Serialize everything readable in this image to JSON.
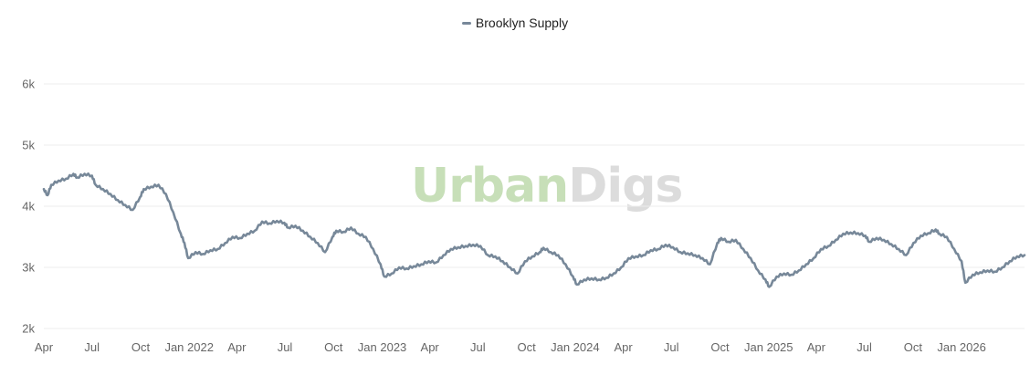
{
  "legend": {
    "label": "Brooklyn Supply"
  },
  "watermark": {
    "part1": "Urban",
    "part2": "Digs"
  },
  "colors": {
    "series": "#778899",
    "grid": "#ececec",
    "axis_text": "#666666",
    "watermark_part1": "#c7dfb8",
    "watermark_part2": "#dcdcdc"
  },
  "chart_data": {
    "type": "line",
    "title": "",
    "xlabel": "",
    "ylabel": "",
    "ylim": [
      2000,
      6000
    ],
    "y_ticks": [
      2000,
      3000,
      4000,
      5000,
      6000
    ],
    "y_tick_labels": [
      "2k",
      "3k",
      "4k",
      "5k",
      "6k"
    ],
    "xlim": [
      "2021-04-01",
      "2026-04-30"
    ],
    "x_ticks": [
      {
        "date": "2021-04-01",
        "label": "Apr"
      },
      {
        "date": "2021-07-01",
        "label": "Jul"
      },
      {
        "date": "2021-10-01",
        "label": "Oct"
      },
      {
        "date": "2022-01-01",
        "label": "Jan 2022"
      },
      {
        "date": "2022-04-01",
        "label": "Apr"
      },
      {
        "date": "2022-07-01",
        "label": "Jul"
      },
      {
        "date": "2022-10-01",
        "label": "Oct"
      },
      {
        "date": "2023-01-01",
        "label": "Jan 2023"
      },
      {
        "date": "2023-04-01",
        "label": "Apr"
      },
      {
        "date": "2023-07-01",
        "label": "Jul"
      },
      {
        "date": "2023-10-01",
        "label": "Oct"
      },
      {
        "date": "2024-01-01",
        "label": "Jan 2024"
      },
      {
        "date": "2024-04-01",
        "label": "Apr"
      },
      {
        "date": "2024-07-01",
        "label": "Jul"
      },
      {
        "date": "2024-10-01",
        "label": "Oct"
      },
      {
        "date": "2025-01-01",
        "label": "Jan 2025"
      },
      {
        "date": "2025-04-01",
        "label": "Apr"
      },
      {
        "date": "2025-07-01",
        "label": "Jul"
      },
      {
        "date": "2025-10-01",
        "label": "Oct"
      },
      {
        "date": "2026-01-01",
        "label": "Jan 2026"
      }
    ],
    "grid": true,
    "legend_position": "top-center",
    "series": [
      {
        "name": "Brooklyn Supply",
        "points": [
          [
            "2021-04-01",
            4280
          ],
          [
            "2021-04-08",
            4180
          ],
          [
            "2021-04-15",
            4350
          ],
          [
            "2021-04-29",
            4420
          ],
          [
            "2021-05-13",
            4450
          ],
          [
            "2021-05-27",
            4530
          ],
          [
            "2021-06-03",
            4470
          ],
          [
            "2021-06-17",
            4530
          ],
          [
            "2021-07-01",
            4500
          ],
          [
            "2021-07-08",
            4350
          ],
          [
            "2021-07-22",
            4280
          ],
          [
            "2021-08-05",
            4200
          ],
          [
            "2021-08-19",
            4100
          ],
          [
            "2021-09-02",
            4020
          ],
          [
            "2021-09-16",
            3940
          ],
          [
            "2021-09-30",
            4150
          ],
          [
            "2021-10-07",
            4280
          ],
          [
            "2021-10-21",
            4320
          ],
          [
            "2021-11-04",
            4350
          ],
          [
            "2021-11-18",
            4200
          ],
          [
            "2021-12-02",
            3900
          ],
          [
            "2021-12-16",
            3550
          ],
          [
            "2021-12-23",
            3400
          ],
          [
            "2021-12-30",
            3150
          ],
          [
            "2022-01-13",
            3250
          ],
          [
            "2022-01-27",
            3220
          ],
          [
            "2022-02-10",
            3280
          ],
          [
            "2022-02-24",
            3300
          ],
          [
            "2022-03-10",
            3400
          ],
          [
            "2022-03-24",
            3500
          ],
          [
            "2022-04-07",
            3480
          ],
          [
            "2022-04-21",
            3550
          ],
          [
            "2022-05-05",
            3600
          ],
          [
            "2022-05-19",
            3750
          ],
          [
            "2022-06-02",
            3720
          ],
          [
            "2022-06-16",
            3760
          ],
          [
            "2022-06-30",
            3730
          ],
          [
            "2022-07-07",
            3650
          ],
          [
            "2022-07-21",
            3680
          ],
          [
            "2022-08-04",
            3600
          ],
          [
            "2022-08-18",
            3500
          ],
          [
            "2022-09-01",
            3400
          ],
          [
            "2022-09-15",
            3250
          ],
          [
            "2022-09-29",
            3500
          ],
          [
            "2022-10-06",
            3600
          ],
          [
            "2022-10-20",
            3580
          ],
          [
            "2022-11-03",
            3650
          ],
          [
            "2022-11-17",
            3550
          ],
          [
            "2022-12-01",
            3500
          ],
          [
            "2022-12-15",
            3300
          ],
          [
            "2022-12-29",
            3050
          ],
          [
            "2023-01-05",
            2850
          ],
          [
            "2023-01-19",
            2900
          ],
          [
            "2023-02-02",
            3000
          ],
          [
            "2023-02-16",
            2980
          ],
          [
            "2023-03-02",
            3020
          ],
          [
            "2023-03-16",
            3050
          ],
          [
            "2023-03-30",
            3100
          ],
          [
            "2023-04-13",
            3080
          ],
          [
            "2023-04-27",
            3200
          ],
          [
            "2023-05-11",
            3300
          ],
          [
            "2023-05-25",
            3330
          ],
          [
            "2023-06-08",
            3350
          ],
          [
            "2023-06-22",
            3370
          ],
          [
            "2023-07-06",
            3350
          ],
          [
            "2023-07-20",
            3200
          ],
          [
            "2023-08-03",
            3180
          ],
          [
            "2023-08-17",
            3100
          ],
          [
            "2023-08-31",
            3000
          ],
          [
            "2023-09-14",
            2900
          ],
          [
            "2023-09-28",
            3100
          ],
          [
            "2023-10-12",
            3180
          ],
          [
            "2023-10-26",
            3250
          ],
          [
            "2023-11-02",
            3320
          ],
          [
            "2023-11-16",
            3250
          ],
          [
            "2023-11-30",
            3200
          ],
          [
            "2023-12-14",
            3050
          ],
          [
            "2023-12-28",
            2850
          ],
          [
            "2024-01-04",
            2720
          ],
          [
            "2024-01-18",
            2800
          ],
          [
            "2024-02-01",
            2820
          ],
          [
            "2024-02-15",
            2800
          ],
          [
            "2024-02-29",
            2830
          ],
          [
            "2024-03-14",
            2900
          ],
          [
            "2024-03-28",
            3000
          ],
          [
            "2024-04-11",
            3150
          ],
          [
            "2024-04-25",
            3180
          ],
          [
            "2024-05-09",
            3200
          ],
          [
            "2024-05-23",
            3280
          ],
          [
            "2024-06-06",
            3300
          ],
          [
            "2024-06-20",
            3370
          ],
          [
            "2024-07-04",
            3330
          ],
          [
            "2024-07-18",
            3250
          ],
          [
            "2024-08-01",
            3230
          ],
          [
            "2024-08-15",
            3200
          ],
          [
            "2024-08-29",
            3150
          ],
          [
            "2024-09-12",
            3050
          ],
          [
            "2024-09-26",
            3400
          ],
          [
            "2024-10-03",
            3480
          ],
          [
            "2024-10-17",
            3420
          ],
          [
            "2024-10-31",
            3450
          ],
          [
            "2024-11-14",
            3300
          ],
          [
            "2024-11-28",
            3150
          ],
          [
            "2024-12-12",
            2950
          ],
          [
            "2024-12-26",
            2800
          ],
          [
            "2025-01-02",
            2680
          ],
          [
            "2025-01-16",
            2850
          ],
          [
            "2025-01-30",
            2900
          ],
          [
            "2025-02-13",
            2880
          ],
          [
            "2025-02-27",
            2950
          ],
          [
            "2025-03-13",
            3050
          ],
          [
            "2025-03-27",
            3150
          ],
          [
            "2025-04-10",
            3300
          ],
          [
            "2025-04-24",
            3350
          ],
          [
            "2025-05-08",
            3450
          ],
          [
            "2025-05-22",
            3550
          ],
          [
            "2025-06-05",
            3570
          ],
          [
            "2025-06-19",
            3560
          ],
          [
            "2025-07-03",
            3520
          ],
          [
            "2025-07-10",
            3420
          ],
          [
            "2025-07-24",
            3480
          ],
          [
            "2025-08-07",
            3450
          ],
          [
            "2025-08-21",
            3380
          ],
          [
            "2025-09-04",
            3300
          ],
          [
            "2025-09-18",
            3200
          ],
          [
            "2025-10-02",
            3400
          ],
          [
            "2025-10-16",
            3520
          ],
          [
            "2025-10-30",
            3560
          ],
          [
            "2025-11-13",
            3620
          ],
          [
            "2025-11-20",
            3550
          ],
          [
            "2025-12-04",
            3500
          ],
          [
            "2025-12-18",
            3300
          ],
          [
            "2026-01-01",
            3100
          ],
          [
            "2026-01-08",
            2750
          ],
          [
            "2026-01-22",
            2880
          ],
          [
            "2026-02-05",
            2920
          ],
          [
            "2026-02-19",
            2950
          ],
          [
            "2026-03-05",
            2930
          ],
          [
            "2026-03-19",
            3000
          ],
          [
            "2026-04-02",
            3100
          ],
          [
            "2026-04-16",
            3180
          ],
          [
            "2026-04-30",
            3200
          ]
        ]
      }
    ]
  }
}
